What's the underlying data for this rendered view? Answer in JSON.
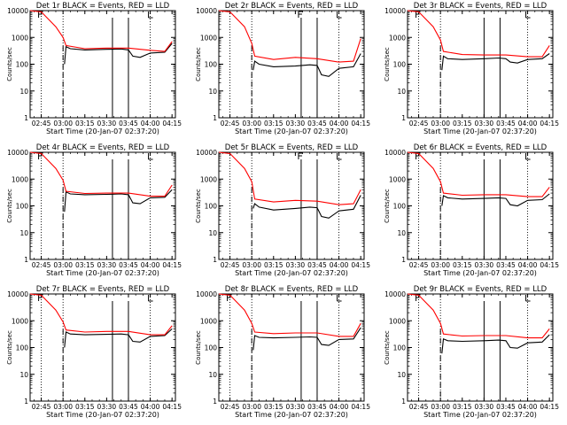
{
  "figure": {
    "xtick_labels": [
      "02:45",
      "03:00",
      "03:15",
      "03:30",
      "03:45",
      "04:00",
      "04:15"
    ],
    "ytick_labels": [
      "1",
      "10",
      "100",
      "1000",
      "10000"
    ],
    "ylabel": "Counts/sec",
    "xlabel": "Start Time (20-Jan-07 02:37:20)",
    "colors": {
      "events": "#000000",
      "lld": "#ff0000"
    },
    "markers": {
      "F": "F",
      "L": "L"
    }
  },
  "chart_data": [
    {
      "type": "line",
      "title": "Det 1r BLACK = Events, RED = LLD",
      "ylabel": "Counts/sec",
      "xlabel": "Start Time (20-Jan-07 02:37:20)",
      "y_scale": "log",
      "ylim": [
        1,
        10000
      ],
      "xlim": [
        "02:37:20",
        "04:17:20"
      ],
      "grid": "dotted vertical lines at 02:45, 03:00, 04:00",
      "markers": {
        "dashed_line": "03:00",
        "solid_lines": [
          "03:34",
          "03:45"
        ],
        "F_label": "02:45",
        "L_label": "04:00"
      },
      "series": [
        {
          "name": "Events",
          "color": "#000000",
          "x": [
            "03:01",
            "03:02",
            "03:05",
            "03:15",
            "03:30",
            "03:40",
            "03:45",
            "03:48",
            "03:53",
            "04:00",
            "04:10",
            "04:15"
          ],
          "values": [
            100,
            450,
            380,
            340,
            360,
            370,
            340,
            200,
            180,
            260,
            280,
            600
          ]
        },
        {
          "name": "LLD",
          "color": "#ff0000",
          "x": [
            "02:37:20",
            "02:45",
            "02:55",
            "03:00",
            "03:02",
            "03:15",
            "03:30",
            "03:45",
            "04:00",
            "04:10",
            "04:15"
          ],
          "values": [
            10000,
            9000,
            2500,
            1000,
            500,
            380,
            400,
            400,
            330,
            300,
            700
          ]
        }
      ]
    },
    {
      "type": "line",
      "title": "Det 2r BLACK = Events, RED = LLD",
      "ylabel": "Counts/sec",
      "xlabel": "Start Time (20-Jan-07 02:37:20)",
      "y_scale": "log",
      "ylim": [
        1,
        10000
      ],
      "xlim": [
        "02:37:20",
        "04:17:20"
      ],
      "grid": "dotted vertical lines at 02:45, 03:00, 04:00",
      "markers": {
        "dashed_line": "03:00",
        "solid_lines": [
          "03:34",
          "03:45"
        ],
        "F_label": "03:34",
        "L_label": "04:00"
      },
      "series": [
        {
          "name": "Events",
          "color": "#000000",
          "x": [
            "03:01",
            "03:02",
            "03:05",
            "03:15",
            "03:30",
            "03:40",
            "03:45",
            "03:48",
            "03:53",
            "04:00",
            "04:10",
            "04:15"
          ],
          "values": [
            60,
            130,
            100,
            80,
            85,
            95,
            90,
            40,
            35,
            70,
            80,
            250
          ]
        },
        {
          "name": "LLD",
          "color": "#ff0000",
          "x": [
            "02:37:20",
            "02:45",
            "02:55",
            "03:00",
            "03:02",
            "03:15",
            "03:30",
            "03:45",
            "04:00",
            "04:10",
            "04:15"
          ],
          "values": [
            10000,
            9000,
            2500,
            600,
            200,
            150,
            180,
            160,
            120,
            130,
            900
          ]
        }
      ]
    },
    {
      "type": "line",
      "title": "Det 3r BLACK = Events, RED = LLD",
      "ylabel": "Counts/sec",
      "xlabel": "Start Time (20-Jan-07 02:37:20)",
      "y_scale": "log",
      "ylim": [
        1,
        10000
      ],
      "xlim": [
        "02:37:20",
        "04:17:20"
      ],
      "grid": "dotted vertical lines at 02:45, 03:00, 04:00",
      "markers": {
        "dashed_line": "03:00",
        "solid_lines": [
          "03:30",
          "03:41"
        ],
        "F_label": "02:45",
        "L_label": "04:00"
      },
      "series": [
        {
          "name": "Events",
          "color": "#000000",
          "x": [
            "03:01",
            "03:02",
            "03:05",
            "03:15",
            "03:30",
            "03:40",
            "03:45",
            "03:48",
            "03:53",
            "04:00",
            "04:10",
            "04:15"
          ],
          "values": [
            60,
            200,
            160,
            150,
            160,
            170,
            160,
            120,
            110,
            150,
            160,
            250
          ]
        },
        {
          "name": "LLD",
          "color": "#ff0000",
          "x": [
            "02:37:20",
            "02:45",
            "02:55",
            "03:00",
            "03:02",
            "03:15",
            "03:30",
            "03:45",
            "04:00",
            "04:10",
            "04:15"
          ],
          "values": [
            10000,
            9000,
            2500,
            800,
            300,
            230,
            220,
            220,
            190,
            190,
            500
          ]
        }
      ]
    },
    {
      "type": "line",
      "title": "Det 4r BLACK = Events, RED = LLD",
      "ylabel": "Counts/sec",
      "xlabel": "Start Time (20-Jan-07 02:37:20)",
      "y_scale": "log",
      "ylim": [
        1,
        10000
      ],
      "xlim": [
        "02:37:20",
        "04:17:20"
      ],
      "grid": "dotted vertical lines at 02:45, 03:00, 04:00",
      "markers": {
        "dashed_line": "03:00",
        "solid_lines": [
          "03:34",
          "03:45"
        ],
        "F_label": "02:45",
        "L_label": "04:00"
      },
      "series": [
        {
          "name": "Events",
          "color": "#000000",
          "x": [
            "03:01",
            "03:02",
            "03:05",
            "03:15",
            "03:30",
            "03:40",
            "03:45",
            "03:48",
            "03:53",
            "04:00",
            "04:10",
            "04:15"
          ],
          "values": [
            60,
            330,
            280,
            260,
            270,
            280,
            260,
            130,
            120,
            200,
            210,
            400
          ]
        },
        {
          "name": "LLD",
          "color": "#ff0000",
          "x": [
            "02:37:20",
            "02:45",
            "02:55",
            "03:00",
            "03:02",
            "03:15",
            "03:30",
            "03:45",
            "04:00",
            "04:10",
            "04:15"
          ],
          "values": [
            10000,
            9000,
            2500,
            900,
            350,
            290,
            300,
            300,
            230,
            230,
            600
          ]
        }
      ]
    },
    {
      "type": "line",
      "title": "Det 5r BLACK = Events, RED = LLD",
      "ylabel": "Counts/sec",
      "xlabel": "Start Time (20-Jan-07 02:37:20)",
      "y_scale": "log",
      "ylim": [
        1,
        10000
      ],
      "xlim": [
        "02:37:20",
        "04:17:20"
      ],
      "grid": "dotted vertical lines at 02:45, 03:00, 04:00",
      "markers": {
        "dashed_line": "03:00",
        "solid_lines": [
          "03:34",
          "03:45"
        ],
        "F_label": "03:34",
        "L_label": "04:00"
      },
      "series": [
        {
          "name": "Events",
          "color": "#000000",
          "x": [
            "03:01",
            "03:02",
            "03:05",
            "03:15",
            "03:30",
            "03:40",
            "03:45",
            "03:48",
            "03:53",
            "04:00",
            "04:10",
            "04:15"
          ],
          "values": [
            80,
            120,
            90,
            70,
            80,
            90,
            85,
            40,
            35,
            65,
            75,
            250
          ]
        },
        {
          "name": "LLD",
          "color": "#ff0000",
          "x": [
            "02:37:20",
            "02:45",
            "02:55",
            "03:00",
            "03:02",
            "03:15",
            "03:30",
            "03:45",
            "04:00",
            "04:10",
            "04:15"
          ],
          "values": [
            10000,
            9000,
            2500,
            800,
            180,
            140,
            160,
            150,
            110,
            120,
            400
          ]
        }
      ]
    },
    {
      "type": "line",
      "title": "Det 6r BLACK = Events, RED = LLD",
      "ylabel": "Counts/sec",
      "xlabel": "Start Time (20-Jan-07 02:37:20)",
      "y_scale": "log",
      "ylim": [
        1,
        10000
      ],
      "xlim": [
        "02:37:20",
        "04:17:20"
      ],
      "grid": "dotted vertical lines at 02:45, 03:00, 04:00",
      "markers": {
        "dashed_line": "03:00",
        "solid_lines": [
          "03:30",
          "03:41"
        ],
        "F_label": "02:45",
        "L_label": "04:00"
      },
      "series": [
        {
          "name": "Events",
          "color": "#000000",
          "x": [
            "03:01",
            "03:02",
            "03:05",
            "03:15",
            "03:30",
            "03:40",
            "03:45",
            "03:48",
            "03:53",
            "04:00",
            "04:10",
            "04:15"
          ],
          "values": [
            100,
            240,
            200,
            180,
            190,
            200,
            190,
            110,
            100,
            160,
            170,
            280
          ]
        },
        {
          "name": "LLD",
          "color": "#ff0000",
          "x": [
            "02:37:20",
            "02:45",
            "02:55",
            "03:00",
            "03:02",
            "03:15",
            "03:30",
            "03:45",
            "04:00",
            "04:10",
            "04:15"
          ],
          "values": [
            10000,
            9000,
            2500,
            800,
            300,
            250,
            260,
            260,
            220,
            220,
            500
          ]
        }
      ]
    },
    {
      "type": "line",
      "title": "Det 7r BLACK = Events, RED = LLD",
      "ylabel": "Counts/sec",
      "xlabel": "Start Time (20-Jan-07 02:37:20)",
      "y_scale": "log",
      "ylim": [
        1,
        10000
      ],
      "xlim": [
        "02:37:20",
        "04:17:20"
      ],
      "grid": "dotted vertical lines at 02:45, 03:00, 04:00",
      "markers": {
        "dashed_line": "03:00",
        "solid_lines": [
          "03:34",
          "03:45"
        ],
        "F_label": "02:45",
        "L_label": "04:00"
      },
      "series": [
        {
          "name": "Events",
          "color": "#000000",
          "x": [
            "03:01",
            "03:02",
            "03:05",
            "03:15",
            "03:30",
            "03:40",
            "03:45",
            "03:48",
            "03:53",
            "04:00",
            "04:10",
            "04:15"
          ],
          "values": [
            100,
            380,
            320,
            300,
            310,
            320,
            300,
            170,
            160,
            260,
            280,
            500
          ]
        },
        {
          "name": "LLD",
          "color": "#ff0000",
          "x": [
            "02:37:20",
            "02:45",
            "02:55",
            "03:00",
            "03:02",
            "03:15",
            "03:30",
            "03:45",
            "04:00",
            "04:10",
            "04:15"
          ],
          "values": [
            10000,
            9000,
            2500,
            900,
            450,
            380,
            400,
            400,
            300,
            300,
            650
          ]
        }
      ]
    },
    {
      "type": "line",
      "title": "Det 8r BLACK = Events, RED = LLD",
      "ylabel": "Counts/sec",
      "xlabel": "Start Time (20-Jan-07 02:37:20)",
      "y_scale": "log",
      "ylim": [
        1,
        10000
      ],
      "xlim": [
        "02:37:20",
        "04:17:20"
      ],
      "grid": "dotted vertical lines at 02:45, 03:00, 04:00",
      "markers": {
        "dashed_line": "03:00",
        "solid_lines": [
          "03:34",
          "03:45"
        ],
        "F_label": "02:45",
        "L_label": "04:00"
      },
      "series": [
        {
          "name": "Events",
          "color": "#000000",
          "x": [
            "03:01",
            "03:02",
            "03:05",
            "03:15",
            "03:30",
            "03:40",
            "03:45",
            "03:48",
            "03:53",
            "04:00",
            "04:10",
            "04:15"
          ],
          "values": [
            80,
            280,
            240,
            230,
            240,
            250,
            240,
            130,
            120,
            200,
            210,
            550
          ]
        },
        {
          "name": "LLD",
          "color": "#ff0000",
          "x": [
            "02:37:20",
            "02:45",
            "02:55",
            "03:00",
            "03:02",
            "03:15",
            "03:30",
            "03:45",
            "04:00",
            "04:10",
            "04:15"
          ],
          "values": [
            10000,
            9000,
            2500,
            800,
            380,
            330,
            350,
            350,
            260,
            260,
            800
          ]
        }
      ]
    },
    {
      "type": "line",
      "title": "Det 9r BLACK = Events, RED = LLD",
      "ylabel": "Counts/sec",
      "xlabel": "Start Time (20-Jan-07 02:37:20)",
      "y_scale": "log",
      "ylim": [
        1,
        10000
      ],
      "xlim": [
        "02:37:20",
        "04:17:20"
      ],
      "grid": "dotted vertical lines at 02:45, 03:00, 04:00",
      "markers": {
        "dashed_line": "03:00",
        "solid_lines": [
          "03:30",
          "03:41"
        ],
        "F_label": "02:45",
        "L_label": "04:00"
      },
      "series": [
        {
          "name": "Events",
          "color": "#000000",
          "x": [
            "03:01",
            "03:02",
            "03:05",
            "03:15",
            "03:30",
            "03:40",
            "03:45",
            "03:48",
            "03:53",
            "04:00",
            "04:10",
            "04:15"
          ],
          "values": [
            60,
            210,
            180,
            170,
            180,
            190,
            180,
            100,
            95,
            150,
            160,
            300
          ]
        },
        {
          "name": "LLD",
          "color": "#ff0000",
          "x": [
            "02:37:20",
            "02:45",
            "02:55",
            "03:00",
            "03:02",
            "03:15",
            "03:30",
            "03:45",
            "04:00",
            "04:10",
            "04:15"
          ],
          "values": [
            10000,
            9000,
            2500,
            800,
            320,
            270,
            280,
            280,
            230,
            230,
            500
          ]
        }
      ]
    }
  ]
}
